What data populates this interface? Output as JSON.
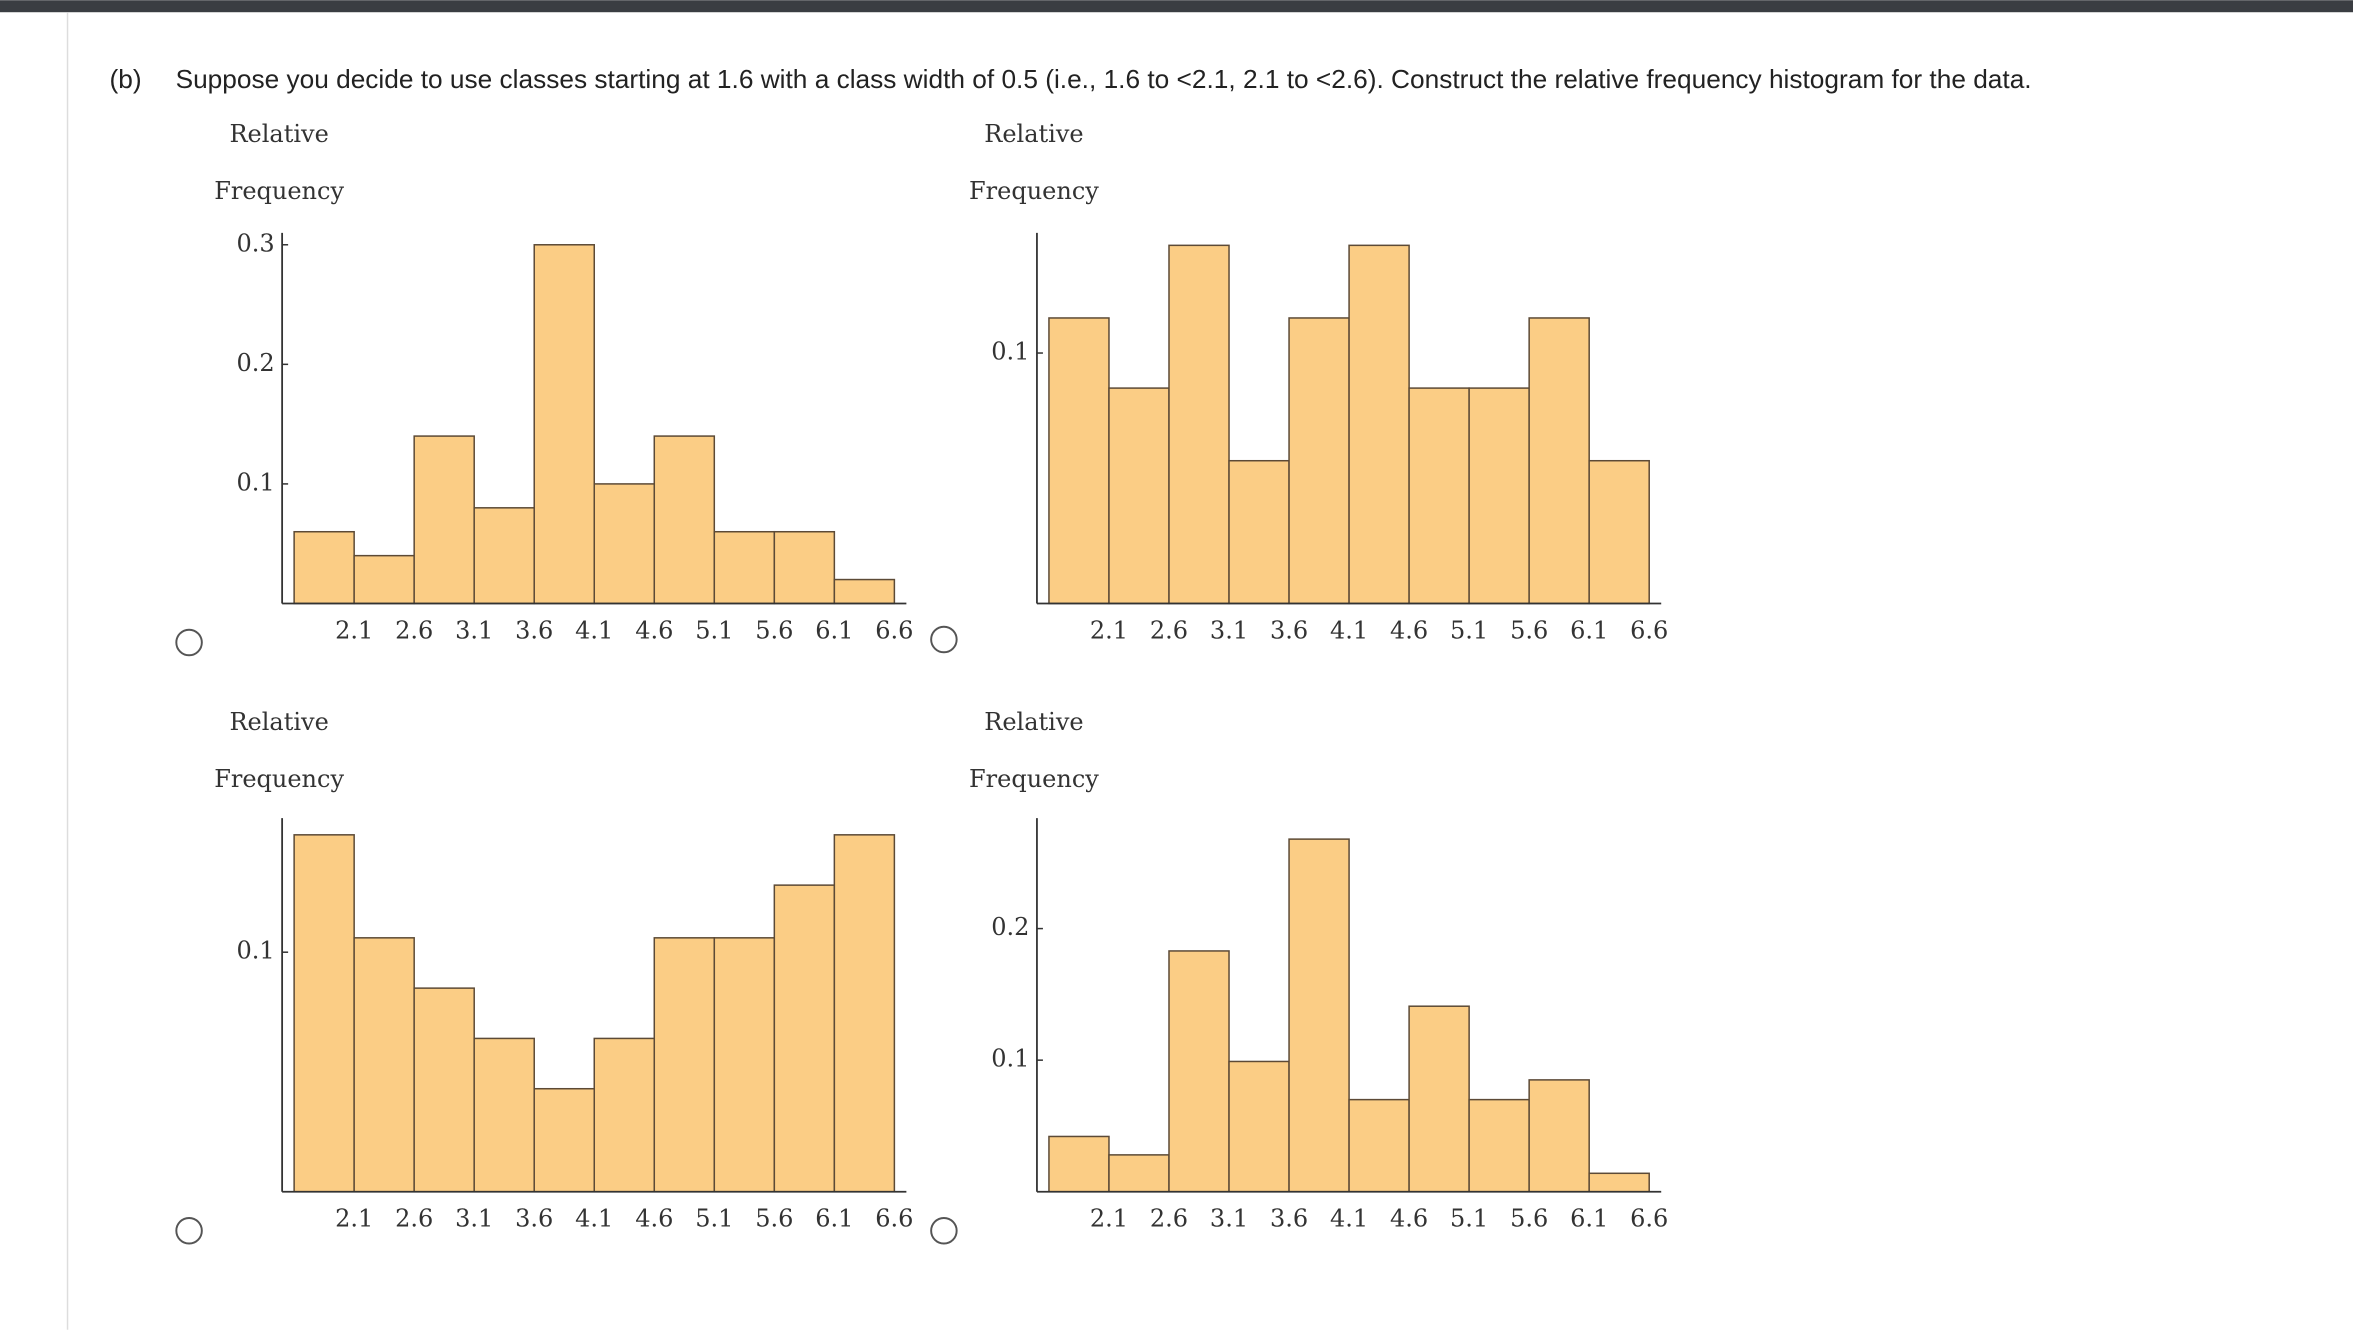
{
  "question": {
    "label": "(b)",
    "text": "Suppose you decide to use classes starting at 1.6 with a class width of 0.5 (i.e., 1.6 to <2.1, 2.1 to <2.6). Construct the relative frequency histogram for the data."
  },
  "chart_data": [
    {
      "type": "histogram",
      "ylabel": [
        "Relative",
        "Frequency"
      ],
      "color": "#fbcd85",
      "bins": [
        1.6,
        2.1,
        2.6,
        3.1,
        3.6,
        4.1,
        4.6,
        5.1,
        5.6,
        6.1,
        6.6
      ],
      "values": [
        0.06,
        0.04,
        0.14,
        0.08,
        0.3,
        0.1,
        0.14,
        0.06,
        0.06,
        0.02
      ],
      "xlim": [
        1.5,
        6.7
      ],
      "xticks": [
        2.1,
        2.6,
        3.1,
        3.6,
        4.1,
        4.6,
        5.1,
        5.6,
        6.1,
        6.6
      ],
      "ylim": [
        0,
        0.31
      ],
      "yticks": [
        0.1,
        0.2,
        0.3
      ]
    },
    {
      "type": "histogram",
      "ylabel": [
        "Relative",
        "Frequency"
      ],
      "color": "#fbcd85",
      "bins": [
        1.6,
        2.1,
        2.6,
        3.1,
        3.6,
        4.1,
        4.6,
        5.1,
        5.6,
        6.1,
        6.6
      ],
      "values": [
        0.114,
        0.086,
        0.143,
        0.057,
        0.114,
        0.143,
        0.086,
        0.086,
        0.114,
        0.057
      ],
      "xlim": [
        1.5,
        6.7
      ],
      "xticks": [
        2.1,
        2.6,
        3.1,
        3.6,
        4.1,
        4.6,
        5.1,
        5.6,
        6.1,
        6.6
      ],
      "ylim": [
        0,
        0.148
      ],
      "yticks": [
        0.1
      ]
    },
    {
      "type": "histogram",
      "ylabel": [
        "Relative",
        "Frequency"
      ],
      "color": "#fbcd85",
      "bins": [
        1.6,
        2.1,
        2.6,
        3.1,
        3.6,
        4.1,
        4.6,
        5.1,
        5.6,
        6.1,
        6.6
      ],
      "values": [
        0.149,
        0.106,
        0.085,
        0.064,
        0.043,
        0.064,
        0.106,
        0.106,
        0.128,
        0.149
      ],
      "xlim": [
        1.5,
        6.7
      ],
      "xticks": [
        2.1,
        2.6,
        3.1,
        3.6,
        4.1,
        4.6,
        5.1,
        5.6,
        6.1,
        6.6
      ],
      "ylim": [
        0,
        0.156
      ],
      "yticks": [
        0.1
      ]
    },
    {
      "type": "histogram",
      "ylabel": [
        "Relative",
        "Frequency"
      ],
      "color": "#fbcd85",
      "bins": [
        1.6,
        2.1,
        2.6,
        3.1,
        3.6,
        4.1,
        4.6,
        5.1,
        5.6,
        6.1,
        6.6
      ],
      "values": [
        0.042,
        0.028,
        0.183,
        0.099,
        0.268,
        0.07,
        0.141,
        0.07,
        0.085,
        0.014
      ],
      "xlim": [
        1.5,
        6.7
      ],
      "xticks": [
        2.1,
        2.6,
        3.1,
        3.6,
        4.1,
        4.6,
        5.1,
        5.6,
        6.1,
        6.6
      ],
      "ylim": [
        0,
        0.284
      ],
      "yticks": [
        0.2,
        0.1
      ]
    }
  ]
}
